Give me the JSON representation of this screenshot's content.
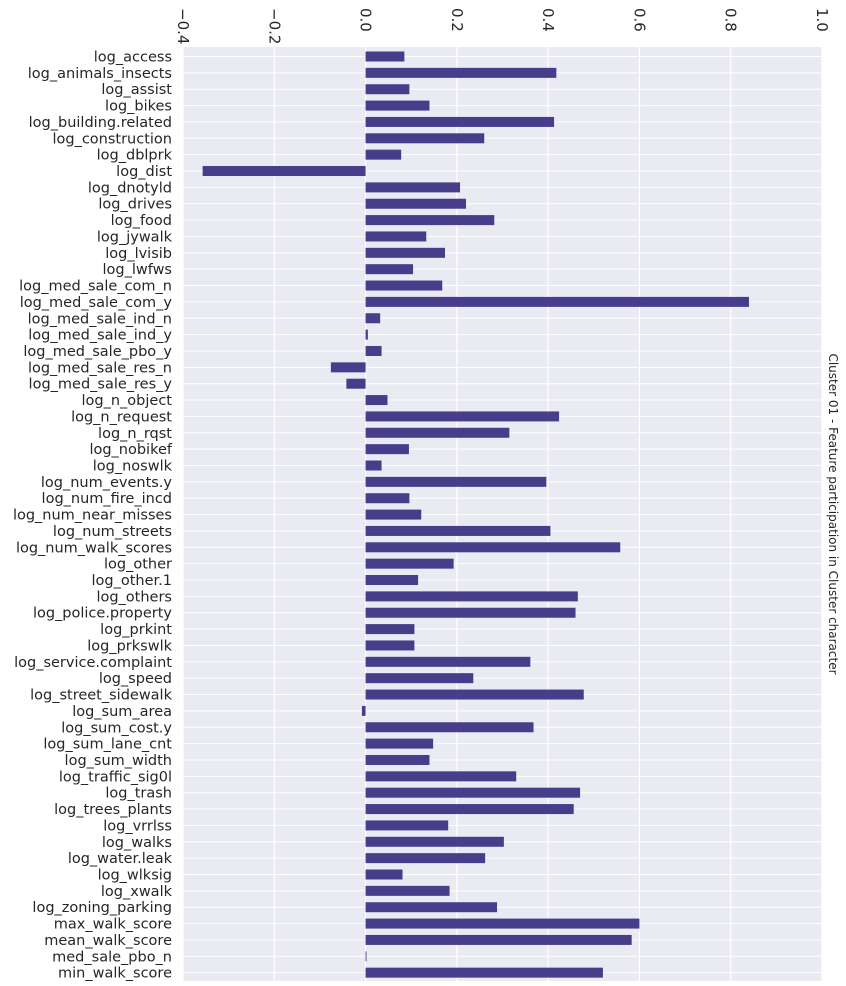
{
  "chart_data": {
    "type": "bar",
    "orientation": "horizontal",
    "title": "Cluster 01  - Feature participation in Cluster character",
    "title_placement": "right-vertical",
    "xlim": [
      -0.4,
      1.0
    ],
    "xticks": [
      -0.4,
      -0.2,
      0.0,
      0.2,
      0.4,
      0.6,
      0.8,
      1.0
    ],
    "xtick_labels": [
      "−0.4",
      "−0.2",
      "0.0",
      "0.2",
      "0.4",
      "0.6",
      "0.8",
      "1.0"
    ],
    "xaxis_placement": "top",
    "tick_label_rotation": 90,
    "grid": true,
    "background": "#eaeaf2",
    "bar_color": "#483d8b",
    "categories": [
      "log_access",
      "log_animals_insects",
      "log_assist",
      "log_bikes",
      "log_building.related",
      "log_construction",
      "log_dblprk",
      "log_dist",
      "log_dnotyld",
      "log_drives",
      "log_food",
      "log_jywalk",
      "log_lvisib",
      "log_lwfws",
      "log_med_sale_com_n",
      "log_med_sale_com_y",
      "log_med_sale_ind_n",
      "log_med_sale_ind_y",
      "log_med_sale_pbo_y",
      "log_med_sale_res_n",
      "log_med_sale_res_y",
      "log_n_object",
      "log_n_request",
      "log_n_rqst",
      "log_nobikef",
      "log_noswlk",
      "log_num_events.y",
      "log_num_fire_incd",
      "log_num_near_misses",
      "log_num_streets",
      "log_num_walk_scores",
      "log_other",
      "log_other.1",
      "log_others",
      "log_police.property",
      "log_prkint",
      "log_prkswlk",
      "log_service.complaint",
      "log_speed",
      "log_street_sidewalk",
      "log_sum_area",
      "log_sum_cost.y",
      "log_sum_lane_cnt",
      "log_sum_width",
      "log_traffic_sig0l",
      "log_trash",
      "log_trees_plants",
      "log_vrrlss",
      "log_walks",
      "log_water.leak",
      "log_wlksig",
      "log_xwalk",
      "log_zoning_parking",
      "max_walk_score",
      "mean_walk_score",
      "med_sale_pbo_n",
      "min_walk_score"
    ],
    "values": [
      0.085,
      0.418,
      0.096,
      0.14,
      0.413,
      0.26,
      0.078,
      -0.357,
      0.207,
      0.22,
      0.282,
      0.133,
      0.174,
      0.104,
      0.168,
      0.84,
      0.032,
      0.005,
      0.035,
      -0.076,
      -0.042,
      0.048,
      0.424,
      0.315,
      0.095,
      0.035,
      0.396,
      0.096,
      0.122,
      0.405,
      0.558,
      0.193,
      0.115,
      0.465,
      0.46,
      0.107,
      0.107,
      0.361,
      0.236,
      0.478,
      -0.008,
      0.368,
      0.148,
      0.14,
      0.33,
      0.47,
      0.456,
      0.181,
      0.303,
      0.262,
      0.081,
      0.184,
      0.288,
      0.6,
      0.583,
      0.002,
      0.52
    ]
  }
}
